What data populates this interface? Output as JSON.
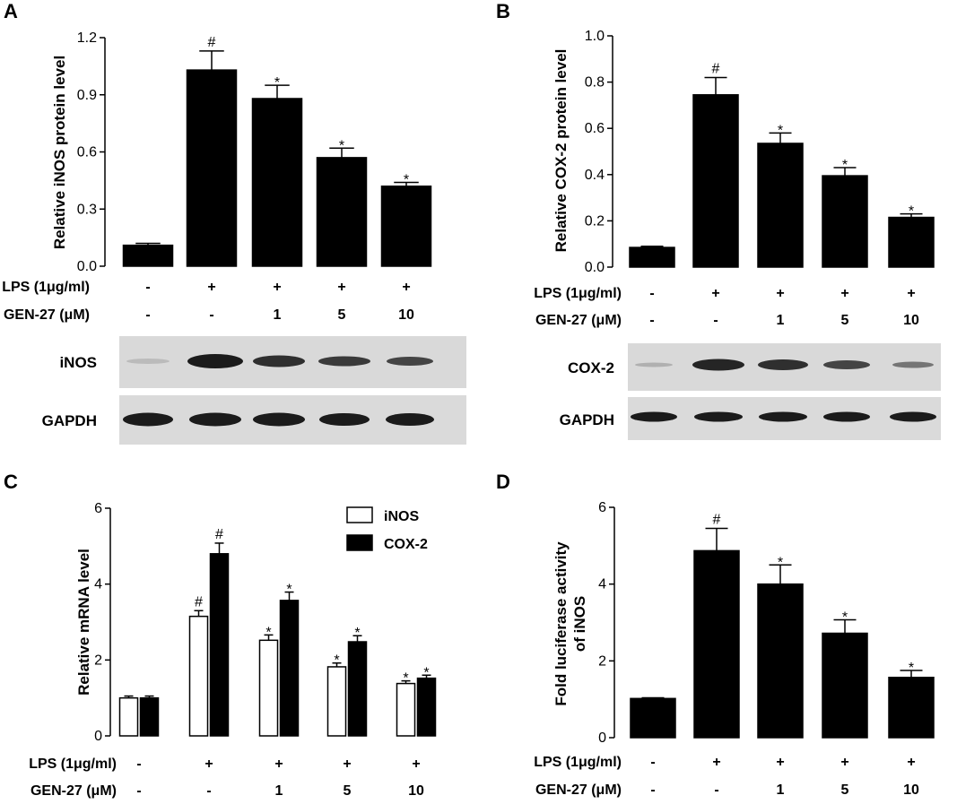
{
  "panels": [
    {
      "letter": "A"
    },
    {
      "letter": "B"
    },
    {
      "letter": "C"
    },
    {
      "letter": "D"
    }
  ],
  "blots": {
    "A": {
      "labels": [
        "iNOS",
        "GAPDH"
      ]
    },
    "B": {
      "labels": [
        "COX-2",
        "GAPDH"
      ]
    }
  },
  "chart_data": [
    {
      "panel": "A",
      "type": "bar",
      "ylabel": "Relative iNOS protein level",
      "ylim": [
        0,
        1.2
      ],
      "yticks": [
        "0.0",
        "0.3",
        "0.6",
        "0.9",
        "1.2"
      ],
      "categories": [
        "1",
        "2",
        "3",
        "4",
        "5"
      ],
      "values": [
        0.11,
        1.03,
        0.88,
        0.57,
        0.42
      ],
      "errors": [
        0.01,
        0.1,
        0.07,
        0.05,
        0.02
      ],
      "significance": [
        "",
        "#",
        "*",
        "*",
        "*"
      ],
      "rows": [
        {
          "label": "LPS (1μg/ml)",
          "values": [
            "-",
            "+",
            "+",
            "+",
            "+"
          ]
        },
        {
          "label": "GEN-27 (μM)",
          "values": [
            "-",
            "-",
            "1",
            "5",
            "10"
          ]
        }
      ]
    },
    {
      "panel": "B",
      "type": "bar",
      "ylabel": "Relative COX-2 protein level",
      "ylim": [
        0,
        1.0
      ],
      "yticks": [
        "0.0",
        "0.2",
        "0.4",
        "0.6",
        "0.8",
        "1.0"
      ],
      "categories": [
        "1",
        "2",
        "3",
        "4",
        "5"
      ],
      "values": [
        0.085,
        0.745,
        0.535,
        0.395,
        0.215
      ],
      "errors": [
        0.005,
        0.075,
        0.045,
        0.035,
        0.015
      ],
      "significance": [
        "",
        "#",
        "*",
        "*",
        "*"
      ],
      "rows": [
        {
          "label": "LPS (1μg/ml)",
          "values": [
            "-",
            "+",
            "+",
            "+",
            "+"
          ]
        },
        {
          "label": "GEN-27 (μM)",
          "values": [
            "-",
            "-",
            "1",
            "5",
            "10"
          ]
        }
      ]
    },
    {
      "panel": "C",
      "type": "bar",
      "ylabel": "Relative mRNA level",
      "ylim": [
        0,
        6
      ],
      "yticks": [
        "0",
        "2",
        "4",
        "6"
      ],
      "categories": [
        "1",
        "2",
        "3",
        "4",
        "5"
      ],
      "series": [
        {
          "name": "iNOS",
          "fill": "#ffffff",
          "values": [
            1.0,
            3.15,
            2.52,
            1.82,
            1.38
          ],
          "errors": [
            0.05,
            0.15,
            0.14,
            0.1,
            0.07
          ],
          "significance": [
            "",
            "#",
            "*",
            "*",
            "*"
          ]
        },
        {
          "name": "COX-2",
          "fill": "#000000",
          "values": [
            1.0,
            4.8,
            3.57,
            2.48,
            1.52
          ],
          "errors": [
            0.05,
            0.28,
            0.22,
            0.16,
            0.08
          ],
          "significance": [
            "",
            "#",
            "*",
            "*",
            "*"
          ]
        }
      ],
      "legend": "top-right",
      "rows": [
        {
          "label": "LPS (1μg/ml)",
          "values": [
            "-",
            "+",
            "+",
            "+",
            "+"
          ]
        },
        {
          "label": "GEN-27 (μM)",
          "values": [
            "-",
            "-",
            "1",
            "5",
            "10"
          ]
        }
      ]
    },
    {
      "panel": "D",
      "type": "bar",
      "ylabel": [
        "Fold luciferase activity",
        "of iNOS"
      ],
      "ylim": [
        0,
        6
      ],
      "yticks": [
        "0",
        "2",
        "4",
        "6"
      ],
      "categories": [
        "1",
        "2",
        "3",
        "4",
        "5"
      ],
      "values": [
        1.02,
        4.87,
        4.0,
        2.72,
        1.57
      ],
      "errors": [
        0.02,
        0.58,
        0.5,
        0.35,
        0.18
      ],
      "significance": [
        "",
        "#",
        "*",
        "*",
        "*"
      ],
      "rows": [
        {
          "label": "LPS (1μg/ml)",
          "values": [
            "-",
            "+",
            "+",
            "+",
            "+"
          ]
        },
        {
          "label": "GEN-27 (μM)",
          "values": [
            "-",
            "-",
            "1",
            "5",
            "10"
          ]
        }
      ]
    }
  ]
}
